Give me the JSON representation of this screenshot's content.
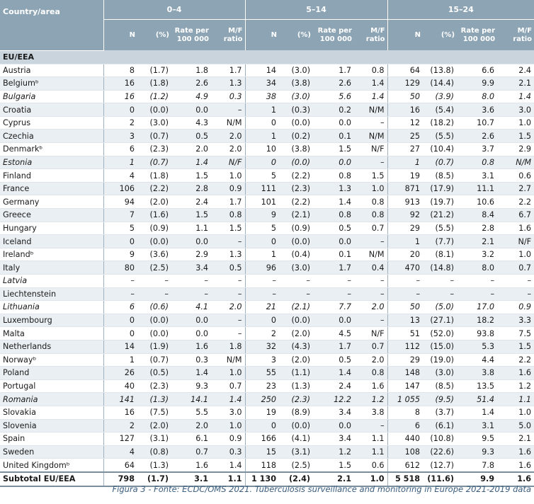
{
  "header": {
    "country_label": "Country/area",
    "groups": [
      "0–4",
      "5–14",
      "15–24"
    ],
    "subheaders": [
      "N",
      "(%)",
      "Rate per 100 000",
      "M/F ratio"
    ]
  },
  "section_label": "EU/EEA",
  "rows": [
    {
      "c": "Austria",
      "v": [
        "8",
        "(1.7)",
        "1.8",
        "1.7",
        "14",
        "(3.0)",
        "1.7",
        "0.8",
        "64",
        "(13.8)",
        "6.6",
        "2.4"
      ]
    },
    {
      "c": "Belgiumᵇ",
      "v": [
        "16",
        "(1.8)",
        "2.6",
        "1.3",
        "34",
        "(3.8)",
        "2.6",
        "1.4",
        "129",
        "(14.4)",
        "9.9",
        "2.1"
      ]
    },
    {
      "c": "Bulgaria",
      "i": true,
      "v": [
        "16",
        "(1.2)",
        "4.9",
        "0.3",
        "38",
        "(3.0)",
        "5.6",
        "1.4",
        "50",
        "(3.9)",
        "8.0",
        "1.4"
      ]
    },
    {
      "c": "Croatia",
      "v": [
        "0",
        "(0.0)",
        "0.0",
        "–",
        "1",
        "(0.3)",
        "0.2",
        "N/M",
        "16",
        "(5.4)",
        "3.6",
        "3.0"
      ]
    },
    {
      "c": "Cyprus",
      "v": [
        "2",
        "(3.0)",
        "4.3",
        "N/M",
        "0",
        "(0.0)",
        "0.0",
        "–",
        "12",
        "(18.2)",
        "10.7",
        "1.0"
      ]
    },
    {
      "c": "Czechia",
      "v": [
        "3",
        "(0.7)",
        "0.5",
        "2.0",
        "1",
        "(0.2)",
        "0.1",
        "N/M",
        "25",
        "(5.5)",
        "2.6",
        "1.5"
      ]
    },
    {
      "c": "Denmarkᵇ",
      "v": [
        "6",
        "(2.3)",
        "2.0",
        "2.0",
        "10",
        "(3.8)",
        "1.5",
        "N/F",
        "27",
        "(10.4)",
        "3.7",
        "2.9"
      ]
    },
    {
      "c": "Estonia",
      "i": true,
      "v": [
        "1",
        "(0.7)",
        "1.4",
        "N/F",
        "0",
        "(0.0)",
        "0.0",
        "–",
        "1",
        "(0.7)",
        "0.8",
        "N/M"
      ]
    },
    {
      "c": "Finland",
      "v": [
        "4",
        "(1.8)",
        "1.5",
        "1.0",
        "5",
        "(2.2)",
        "0.8",
        "1.5",
        "19",
        "(8.5)",
        "3.1",
        "0.6"
      ]
    },
    {
      "c": "France",
      "v": [
        "106",
        "(2.2)",
        "2.8",
        "0.9",
        "111",
        "(2.3)",
        "1.3",
        "1.0",
        "871",
        "(17.9)",
        "11.1",
        "2.7"
      ]
    },
    {
      "c": "Germany",
      "v": [
        "94",
        "(2.0)",
        "2.4",
        "1.7",
        "101",
        "(2.2)",
        "1.4",
        "0.8",
        "913",
        "(19.7)",
        "10.6",
        "2.2"
      ]
    },
    {
      "c": "Greece",
      "v": [
        "7",
        "(1.6)",
        "1.5",
        "0.8",
        "9",
        "(2.1)",
        "0.8",
        "0.8",
        "92",
        "(21.2)",
        "8.4",
        "6.7"
      ]
    },
    {
      "c": "Hungary",
      "v": [
        "5",
        "(0.9)",
        "1.1",
        "1.5",
        "5",
        "(0.9)",
        "0.5",
        "0.7",
        "29",
        "(5.5)",
        "2.8",
        "1.6"
      ]
    },
    {
      "c": "Iceland",
      "v": [
        "0",
        "(0.0)",
        "0.0",
        "–",
        "0",
        "(0.0)",
        "0.0",
        "–",
        "1",
        "(7.7)",
        "2.1",
        "N/F"
      ]
    },
    {
      "c": "Irelandᵇ",
      "v": [
        "9",
        "(3.6)",
        "2.9",
        "1.3",
        "1",
        "(0.4)",
        "0.1",
        "N/M",
        "20",
        "(8.1)",
        "3.2",
        "1.0"
      ]
    },
    {
      "c": "Italy",
      "v": [
        "80",
        "(2.5)",
        "3.4",
        "0.5",
        "96",
        "(3.0)",
        "1.7",
        "0.4",
        "470",
        "(14.8)",
        "8.0",
        "0.7"
      ]
    },
    {
      "c": "Latvia",
      "i": true,
      "v": [
        "–",
        "–",
        "–",
        "–",
        "–",
        "–",
        "–",
        "–",
        "–",
        "–",
        "–",
        "–"
      ]
    },
    {
      "c": "Liechtenstein",
      "v": [
        "–",
        "–",
        "–",
        "–",
        "–",
        "–",
        "–",
        "–",
        "–",
        "–",
        "–",
        "–"
      ]
    },
    {
      "c": "Lithuania",
      "i": true,
      "v": [
        "6",
        "(0.6)",
        "4.1",
        "2.0",
        "21",
        "(2.1)",
        "7.7",
        "2.0",
        "50",
        "(5.0)",
        "17.0",
        "0.9"
      ]
    },
    {
      "c": "Luxembourg",
      "v": [
        "0",
        "(0.0)",
        "0.0",
        "–",
        "0",
        "(0.0)",
        "0.0",
        "–",
        "13",
        "(27.1)",
        "18.2",
        "3.3"
      ]
    },
    {
      "c": "Malta",
      "v": [
        "0",
        "(0.0)",
        "0.0",
        "–",
        "2",
        "(2.0)",
        "4.5",
        "N/F",
        "51",
        "(52.0)",
        "93.8",
        "7.5"
      ]
    },
    {
      "c": "Netherlands",
      "v": [
        "14",
        "(1.9)",
        "1.6",
        "1.8",
        "32",
        "(4.3)",
        "1.7",
        "0.7",
        "112",
        "(15.0)",
        "5.3",
        "1.5"
      ]
    },
    {
      "c": "Norwayᵇ",
      "v": [
        "1",
        "(0.7)",
        "0.3",
        "N/M",
        "3",
        "(2.0)",
        "0.5",
        "2.0",
        "29",
        "(19.0)",
        "4.4",
        "2.2"
      ]
    },
    {
      "c": "Poland",
      "v": [
        "26",
        "(0.5)",
        "1.4",
        "1.0",
        "55",
        "(1.1)",
        "1.4",
        "0.8",
        "148",
        "(3.0)",
        "3.8",
        "1.6"
      ]
    },
    {
      "c": "Portugal",
      "v": [
        "40",
        "(2.3)",
        "9.3",
        "0.7",
        "23",
        "(1.3)",
        "2.4",
        "1.6",
        "147",
        "(8.5)",
        "13.5",
        "1.2"
      ]
    },
    {
      "c": "Romania",
      "i": true,
      "v": [
        "141",
        "(1.3)",
        "14.1",
        "1.4",
        "250",
        "(2.3)",
        "12.2",
        "1.2",
        "1 055",
        "(9.5)",
        "51.4",
        "1.1"
      ]
    },
    {
      "c": "Slovakia",
      "v": [
        "16",
        "(7.5)",
        "5.5",
        "3.0",
        "19",
        "(8.9)",
        "3.4",
        "3.8",
        "8",
        "(3.7)",
        "1.4",
        "1.0"
      ]
    },
    {
      "c": "Slovenia",
      "v": [
        "2",
        "(2.0)",
        "2.0",
        "1.0",
        "0",
        "(0.0)",
        "0.0",
        "–",
        "6",
        "(6.1)",
        "3.1",
        "5.0"
      ]
    },
    {
      "c": "Spain",
      "v": [
        "127",
        "(3.1)",
        "6.1",
        "0.9",
        "166",
        "(4.1)",
        "3.4",
        "1.1",
        "440",
        "(10.8)",
        "9.5",
        "2.1"
      ]
    },
    {
      "c": "Sweden",
      "v": [
        "4",
        "(0.8)",
        "0.7",
        "0.3",
        "15",
        "(3.1)",
        "1.2",
        "1.1",
        "108",
        "(22.6)",
        "9.3",
        "1.6"
      ]
    },
    {
      "c": "United Kingdomᵇ",
      "v": [
        "64",
        "(1.3)",
        "1.6",
        "1.4",
        "118",
        "(2.5)",
        "1.5",
        "0.6",
        "612",
        "(12.7)",
        "7.8",
        "1.6"
      ]
    }
  ],
  "total": {
    "c": "Subtotal EU/EEA",
    "v": [
      "798",
      "(1.7)",
      "3.1",
      "1.1",
      "1 130",
      "(2.4)",
      "2.1",
      "1.0",
      "5 518",
      "(11.6)",
      "9.9",
      "1.6"
    ]
  },
  "caption": "Figura 3 - Fonte: ECDC/OMS 2021. Tuberculosis surveillance and monitoring in Europe 2021-2019 data"
}
